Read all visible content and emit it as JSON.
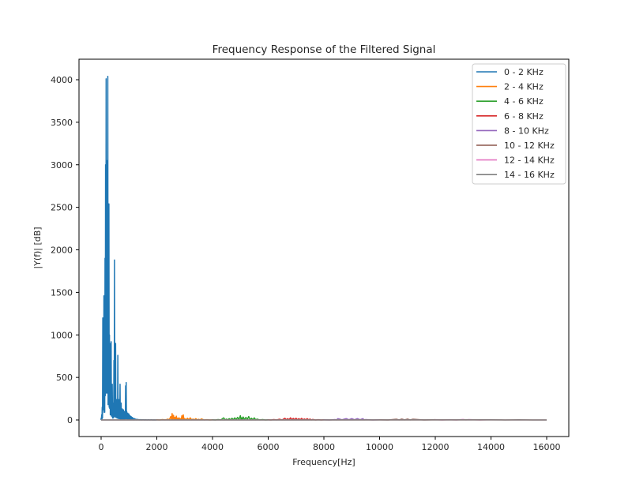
{
  "chart_data": {
    "type": "line",
    "title": "Frequency Response of the Filtered Signal",
    "xlabel": "Frequency[Hz]",
    "ylabel": "|Y(f)| [dB]",
    "xlim": [
      -800,
      16800
    ],
    "ylim": [
      -200,
      4200
    ],
    "xticks": [
      0,
      2000,
      4000,
      6000,
      8000,
      10000,
      12000,
      14000,
      16000
    ],
    "xtick_labels": [
      "0",
      "2000",
      "4000",
      "6000",
      "8000",
      "10000",
      "12000",
      "14000",
      "16000"
    ],
    "yticks": [
      0,
      500,
      1000,
      1500,
      2000,
      2500,
      3000,
      3500,
      4000
    ],
    "ytick_labels": [
      "0",
      "500",
      "1000",
      "1500",
      "2000",
      "2500",
      "3000",
      "3500",
      "4000"
    ],
    "grid": false,
    "legend_position": "upper right",
    "series": [
      {
        "name": "0 - 2 KHz",
        "color": "#1f77b4",
        "x": [
          0,
          20,
          40,
          60,
          80,
          100,
          120,
          140,
          160,
          180,
          200,
          220,
          240,
          260,
          280,
          300,
          320,
          340,
          360,
          380,
          400,
          420,
          440,
          460,
          480,
          500,
          520,
          540,
          560,
          580,
          600,
          620,
          640,
          660,
          680,
          700,
          720,
          740,
          760,
          780,
          800,
          820,
          840,
          860,
          880,
          900,
          920,
          940,
          960,
          980,
          1000,
          1020,
          1040,
          1060,
          1080,
          1100,
          1120,
          1140,
          1160,
          1180,
          1200,
          1240,
          1280,
          1320,
          1360,
          1400,
          1440,
          1480,
          1520,
          1560,
          1600,
          1700,
          1800,
          1900,
          2000
        ],
        "y": [
          20,
          60,
          150,
          1200,
          800,
          1460,
          600,
          1900,
          3000,
          4010,
          2100,
          3050,
          4040,
          1200,
          2540,
          1000,
          900,
          400,
          920,
          300,
          420,
          150,
          200,
          700,
          1880,
          250,
          900,
          200,
          240,
          150,
          760,
          120,
          240,
          100,
          420,
          60,
          200,
          80,
          130,
          60,
          120,
          40,
          100,
          60,
          400,
          440,
          100,
          50,
          80,
          40,
          70,
          30,
          50,
          30,
          40,
          20,
          30,
          15,
          20,
          10,
          15,
          10,
          8,
          6,
          5,
          4,
          4,
          3,
          3,
          2,
          2,
          2,
          2,
          1,
          1
        ]
      },
      {
        "name": "2 - 4 KHz",
        "color": "#ff7f0e",
        "x": [
          2000,
          2200,
          2400,
          2500,
          2550,
          2600,
          2650,
          2700,
          2750,
          2800,
          2850,
          2900,
          2950,
          3000,
          3100,
          3200,
          3300,
          3400,
          3500,
          3600,
          3800,
          4000
        ],
        "y": [
          2,
          5,
          10,
          40,
          75,
          55,
          30,
          45,
          20,
          25,
          15,
          50,
          60,
          15,
          20,
          25,
          10,
          15,
          8,
          12,
          4,
          2
        ]
      },
      {
        "name": "4 - 6 KHz",
        "color": "#2ca02c",
        "x": [
          4000,
          4200,
          4400,
          4500,
          4600,
          4700,
          4800,
          4900,
          5000,
          5050,
          5100,
          5200,
          5300,
          5400,
          5500,
          5600,
          5800,
          6000
        ],
        "y": [
          2,
          5,
          25,
          10,
          15,
          20,
          25,
          30,
          50,
          25,
          35,
          30,
          40,
          20,
          25,
          10,
          5,
          2
        ],
        "note": "small ripples ~20–50 between 4.4 and 5.6 kHz"
      },
      {
        "name": "6 - 8 KHz",
        "color": "#d62728",
        "x": [
          6000,
          6200,
          6400,
          6600,
          6700,
          6800,
          6900,
          7000,
          7100,
          7200,
          7300,
          7400,
          7500,
          7600,
          7800,
          8000
        ],
        "y": [
          2,
          5,
          8,
          20,
          15,
          25,
          18,
          20,
          15,
          18,
          12,
          15,
          10,
          6,
          3,
          2
        ]
      },
      {
        "name": "8 - 10 KHz",
        "color": "#9467bd",
        "x": [
          8000,
          8400,
          8500,
          8800,
          9000,
          9200,
          9400,
          9500,
          10000
        ],
        "y": [
          2,
          5,
          15,
          15,
          15,
          15,
          15,
          5,
          2
        ]
      },
      {
        "name": "10 - 12 KHz",
        "color": "#8c564b",
        "x": [
          10000,
          10600,
          10800,
          11000,
          11200,
          12000
        ],
        "y": [
          2,
          8,
          10,
          10,
          8,
          3
        ]
      },
      {
        "name": "12 - 14 KHz",
        "color": "#e377c2",
        "x": [
          12000,
          12500,
          13000,
          13200,
          14000
        ],
        "y": [
          3,
          4,
          6,
          5,
          3
        ]
      },
      {
        "name": "14 - 16 KHz",
        "color": "#7f7f7f",
        "x": [
          0,
          14000,
          15000,
          16000
        ],
        "y": [
          0,
          2,
          2,
          0
        ]
      }
    ]
  }
}
